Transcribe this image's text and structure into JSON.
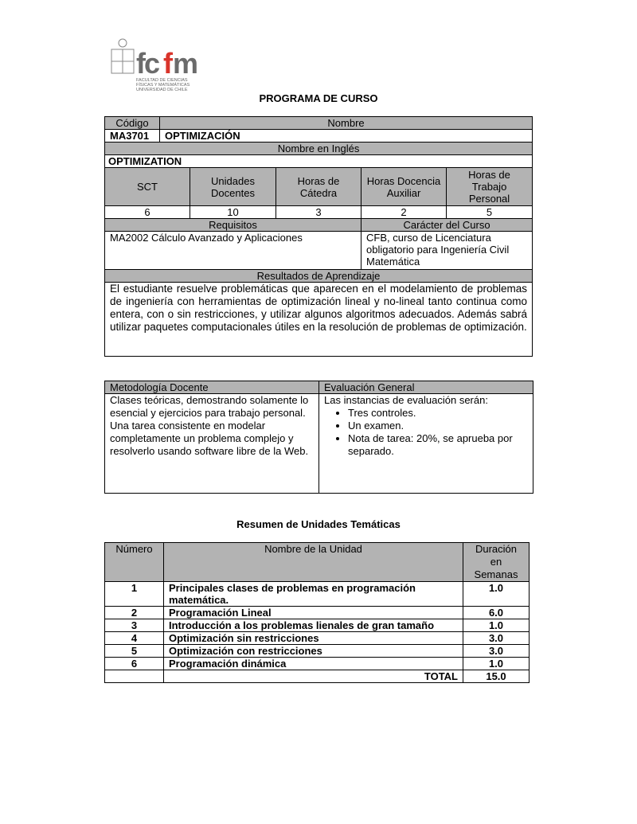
{
  "logo": {
    "text": "fcfm",
    "lines": [
      "FACULTAD DE CIENCIAS",
      "FÍSICAS Y MATEMÁTICAS",
      "UNIVERSIDAD DE CHILE"
    ]
  },
  "title": "PROGRAMA DE CURSO",
  "course": {
    "codigo_label": "Código",
    "nombre_label": "Nombre",
    "codigo": "MA3701",
    "nombre": "OPTIMIZACIÓN",
    "ingles_label": "Nombre en Inglés",
    "ingles": "OPTIMIZATION",
    "hours_headers": [
      "SCT",
      "Unidades Docentes",
      "Horas de Cátedra",
      "Horas Docencia Auxiliar",
      "Horas de Trabajo Personal"
    ],
    "hours_values": [
      "6",
      "10",
      "3",
      "2",
      "5"
    ],
    "requisitos_label": "Requisitos",
    "requisitos": "MA2002 Cálculo Avanzado y Aplicaciones",
    "caracter_label": "Carácter del Curso",
    "caracter": "CFB, curso de Licenciatura obligatorio para Ingeniería Civil Matemática",
    "resultados_label": "Resultados de Aprendizaje",
    "resultados": "El estudiante resuelve problemáticas que aparecen en el modelamiento de problemas de ingeniería con herramientas de optimización lineal y no-lineal tanto continua como entera, con o sin restricciones, y utilizar algunos algoritmos adecuados. Además sabrá utilizar paquetes computacionales útiles en la resolución de problemas de optimización."
  },
  "method": {
    "metodologia_label": "Metodología Docente",
    "evaluacion_label": "Evaluación General",
    "metodologia": [
      "Clases teóricas, demostrando solamente lo esencial y ejercicios para trabajo personal.",
      "Una tarea consistente en modelar completamente un problema complejo y resolverlo usando software libre de la Web."
    ],
    "evaluacion_intro": "Las instancias de evaluación serán:",
    "evaluacion_items": [
      "Tres controles.",
      "Un examen.",
      "Nota de tarea: 20%, se aprueba por separado."
    ]
  },
  "units": {
    "title": "Resumen de Unidades Temáticas",
    "headers": [
      "Número",
      "Nombre de la Unidad",
      "Duración en Semanas"
    ],
    "rows": [
      {
        "n": "1",
        "name": "Principales clases de problemas en programación matemática.",
        "dur": "1.0"
      },
      {
        "n": "2",
        "name": "Programación Lineal",
        "dur": "6.0"
      },
      {
        "n": "3",
        "name": "Introducción a los problemas lienales de gran tamaño",
        "dur": "1.0"
      },
      {
        "n": "4",
        "name": "Optimización sin restricciones",
        "dur": "3.0"
      },
      {
        "n": "5",
        "name": "Optimización con restricciones",
        "dur": "3.0"
      },
      {
        "n": "6",
        "name": "Programación dinámica",
        "dur": "1.0"
      }
    ],
    "total_label": "TOTAL",
    "total": "15.0"
  }
}
